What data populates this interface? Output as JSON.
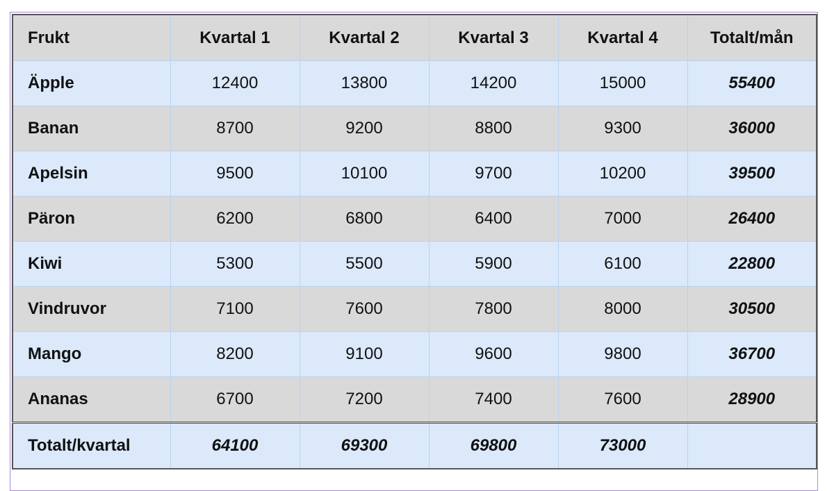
{
  "table": {
    "header": [
      "Frukt",
      "Kvartal 1",
      "Kvartal 2",
      "Kvartal 3",
      "Kvartal 4",
      "Totalt/mån"
    ],
    "rows": [
      [
        "Äpple",
        12400,
        13800,
        14200,
        15000,
        55400
      ],
      [
        "Banan",
        8700,
        9200,
        8800,
        9300,
        36000
      ],
      [
        "Apelsin",
        9500,
        10100,
        9700,
        10200,
        39500
      ],
      [
        "Päron",
        6200,
        6800,
        6400,
        7000,
        26400
      ],
      [
        "Kiwi",
        5300,
        5500,
        5900,
        6100,
        22800
      ],
      [
        "Vindruvor",
        7100,
        7600,
        7800,
        8000,
        30500
      ],
      [
        "Mango",
        8200,
        9100,
        9600,
        9800,
        36700
      ],
      [
        "Ananas",
        6700,
        7200,
        7400,
        7600,
        28900
      ]
    ],
    "footer": {
      "label": "Totalt/kvartal",
      "values": [
        64100,
        69300,
        69800,
        73000
      ]
    }
  }
}
